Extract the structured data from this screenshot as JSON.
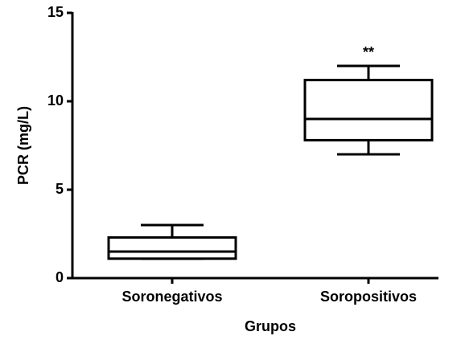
{
  "chart_data": {
    "type": "box",
    "xlabel": "Grupos",
    "ylabel": "PCR (mg/L)",
    "categories": [
      "Soronegativos",
      "Soropositivos"
    ],
    "boxes": [
      {
        "min": 1.1,
        "q1": 1.1,
        "median": 1.5,
        "q3": 2.3,
        "max": 3.0
      },
      {
        "min": 7.0,
        "q1": 7.8,
        "median": 9.0,
        "q3": 11.2,
        "max": 12.0
      }
    ],
    "annotations": [
      {
        "text": "**",
        "category": 1
      }
    ],
    "color": "#000000",
    "ylim": [
      0,
      15
    ],
    "yticks": [
      0,
      5,
      10,
      15
    ],
    "grid": false
  }
}
